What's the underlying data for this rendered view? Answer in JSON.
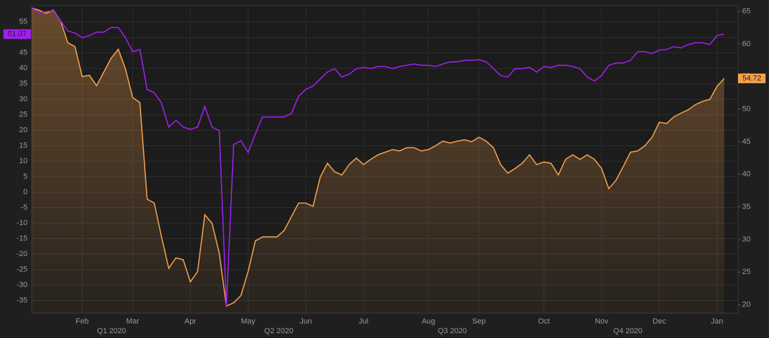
{
  "chart_data": {
    "type": "line",
    "categories": [
      null,
      null,
      null,
      null,
      null,
      null,
      null,
      "Feb",
      null,
      null,
      null,
      null,
      null,
      null,
      "Mar",
      null,
      null,
      null,
      null,
      null,
      null,
      null,
      "Apr",
      null,
      null,
      null,
      null,
      null,
      null,
      null,
      "May",
      null,
      null,
      null,
      null,
      null,
      null,
      null,
      "Jun",
      null,
      null,
      null,
      null,
      null,
      null,
      null,
      "Jul",
      null,
      null,
      null,
      null,
      null,
      null,
      null,
      null,
      "Aug",
      null,
      null,
      null,
      null,
      null,
      null,
      "Sep",
      null,
      null,
      null,
      null,
      null,
      null,
      null,
      null,
      "Oct",
      null,
      null,
      null,
      null,
      null,
      null,
      null,
      "Nov",
      null,
      null,
      null,
      null,
      null,
      null,
      null,
      "Dec",
      null,
      null,
      null,
      null,
      null,
      null,
      null,
      "Jan",
      null
    ],
    "quarter_labels": [
      "Q1 2020",
      "Q2 2020",
      "Q3 2020",
      "Q4 2020"
    ],
    "series": [
      {
        "color": "#f5a04a",
        "axis": "y2",
        "area": true,
        "values": [
          65.5,
          65.2,
          64.7,
          65.2,
          63.6,
          60.2,
          59.6,
          55.0,
          55.2,
          53.6,
          55.7,
          57.8,
          59.2,
          56.2,
          51.8,
          51.0,
          36.2,
          35.6,
          30.4,
          25.6,
          27.2,
          26.9,
          23.5,
          25.1,
          33.8,
          32.5,
          27.9,
          19.8,
          20.3,
          21.4,
          25.1,
          29.8,
          30.4,
          30.4,
          30.4,
          31.4,
          33.5,
          35.6,
          35.6,
          35.1,
          39.6,
          41.7,
          40.4,
          39.9,
          41.5,
          42.5,
          41.5,
          42.3,
          43.0,
          43.4,
          43.8,
          43.6,
          44.1,
          44.1,
          43.6,
          43.8,
          44.4,
          45.1,
          44.8,
          45.1,
          45.3,
          45.0,
          45.7,
          45.1,
          44.1,
          41.5,
          40.2,
          40.9,
          41.7,
          43.0,
          41.5,
          41.9,
          41.7,
          39.9,
          42.3,
          43.0,
          42.3,
          43.0,
          42.3,
          40.9,
          37.8,
          39.1,
          41.2,
          43.4,
          43.6,
          44.4,
          45.7,
          48.0,
          47.8,
          48.8,
          49.4,
          49.9,
          50.7,
          51.2,
          51.5,
          53.5,
          54.72
        ]
      },
      {
        "color": "#a21ff0",
        "axis": "y",
        "values": [
          59.4,
          58.1,
          58.3,
          58.6,
          55.4,
          52.1,
          51.4,
          49.9,
          50.6,
          51.7,
          51.7,
          53.2,
          53.2,
          49.9,
          45.4,
          46.1,
          33.2,
          32.1,
          28.8,
          21.0,
          23.2,
          21.0,
          20.3,
          21.0,
          27.7,
          21.0,
          19.9,
          -36.8,
          15.4,
          16.6,
          12.8,
          18.8,
          24.3,
          24.3,
          24.3,
          24.3,
          25.4,
          31.0,
          33.2,
          34.3,
          36.6,
          38.8,
          39.9,
          37.2,
          38.1,
          39.9,
          40.3,
          39.9,
          40.6,
          40.6,
          39.9,
          40.6,
          41.0,
          41.4,
          41.0,
          41.0,
          40.6,
          41.4,
          42.1,
          42.1,
          42.6,
          42.6,
          42.8,
          42.1,
          39.9,
          37.7,
          37.2,
          39.9,
          39.9,
          40.3,
          38.8,
          40.6,
          40.3,
          41.0,
          41.0,
          40.6,
          39.9,
          37.2,
          35.9,
          37.7,
          41.0,
          41.7,
          41.7,
          42.6,
          45.4,
          45.4,
          44.8,
          45.9,
          46.1,
          47.0,
          46.6,
          47.7,
          48.3,
          48.3,
          47.7,
          50.6,
          51.07
        ]
      }
    ],
    "ylim": [
      -39.1,
      60.3
    ],
    "yticks": [
      -35,
      -30,
      -25,
      -20,
      -15,
      -10,
      -5,
      0,
      5,
      10,
      15,
      20,
      25,
      30,
      35,
      40,
      45,
      50,
      55
    ],
    "y2lim": [
      18.7,
      65.9
    ],
    "y2ticks": [
      20,
      25,
      30,
      35,
      40,
      45,
      50,
      55,
      60,
      65
    ],
    "grid": true
  }
}
